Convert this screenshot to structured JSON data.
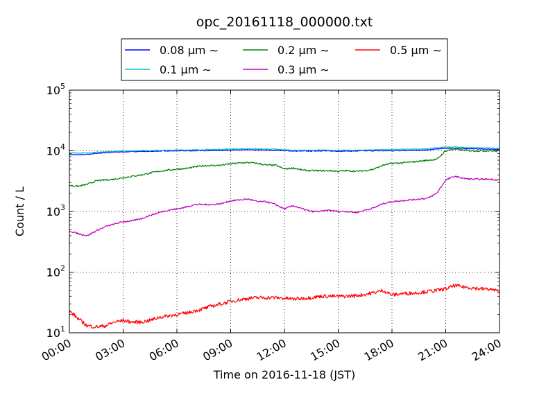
{
  "chart_data": {
    "type": "line",
    "title": "opc_20161118_000000.txt",
    "xlabel": "Time on 2016-11-18 (JST)",
    "ylabel": "Count / L",
    "x_unit": "hours",
    "xlim": [
      0,
      24
    ],
    "x_ticks": [
      0,
      3,
      6,
      9,
      12,
      15,
      18,
      21,
      24
    ],
    "x_tick_labels": [
      "00:00",
      "03:00",
      "06:00",
      "09:00",
      "12:00",
      "15:00",
      "18:00",
      "21:00",
      "24:00"
    ],
    "y_scale": "log",
    "ylim": [
      10,
      100000
    ],
    "y_ticks": [
      10,
      100,
      1000,
      10000,
      100000
    ],
    "y_tick_exponents": [
      "1",
      "2",
      "3",
      "4",
      "5"
    ],
    "y_tick_base": "10",
    "grid": true,
    "legend": {
      "placement": "top",
      "columns": 3
    },
    "series": [
      {
        "name": "0.08 μm ∼",
        "color": "#0000ff",
        "x": [
          0,
          0.5,
          1,
          1.5,
          2,
          2.5,
          3,
          3.5,
          4,
          4.5,
          5,
          5.5,
          6,
          6.5,
          7,
          7.5,
          8,
          8.5,
          9,
          9.5,
          10,
          10.5,
          11,
          11.5,
          12,
          12.5,
          13,
          13.5,
          14,
          14.5,
          15,
          15.5,
          16,
          16.5,
          17,
          17.5,
          18,
          18.5,
          19,
          19.5,
          20,
          20.5,
          21,
          21.5,
          22,
          22.5,
          23,
          23.5,
          24
        ],
        "values": [
          8700,
          8600,
          8700,
          9100,
          9300,
          9500,
          9600,
          9700,
          9800,
          9800,
          9900,
          9900,
          10000,
          10000,
          10000,
          10100,
          10100,
          10200,
          10300,
          10300,
          10400,
          10300,
          10300,
          10200,
          10100,
          9900,
          9900,
          9900,
          10000,
          9900,
          9900,
          9900,
          9900,
          10000,
          10000,
          10000,
          10000,
          10100,
          10100,
          10200,
          10300,
          10700,
          11000,
          11000,
          10900,
          10800,
          10700,
          10600,
          10500
        ]
      },
      {
        "name": "0.1 μm ∼",
        "color": "#00bfbf",
        "x": [
          0,
          0.5,
          1,
          1.5,
          2,
          2.5,
          3,
          3.5,
          4,
          4.5,
          5,
          5.5,
          6,
          6.5,
          7,
          7.5,
          8,
          8.5,
          9,
          9.5,
          10,
          10.5,
          11,
          11.5,
          12,
          12.5,
          13,
          13.5,
          14,
          14.5,
          15,
          15.5,
          16,
          16.5,
          17,
          17.5,
          18,
          18.5,
          19,
          19.5,
          20,
          20.5,
          21,
          21.5,
          22,
          22.5,
          23,
          23.5,
          24
        ],
        "values": [
          9300,
          9200,
          9200,
          9500,
          9600,
          9800,
          9900,
          10000,
          10100,
          10100,
          10200,
          10200,
          10300,
          10300,
          10400,
          10400,
          10500,
          10600,
          10700,
          10700,
          10800,
          10700,
          10700,
          10600,
          10400,
          10200,
          10200,
          10200,
          10300,
          10200,
          10200,
          10200,
          10200,
          10300,
          10400,
          10500,
          10500,
          10600,
          10600,
          10700,
          10800,
          11200,
          11500,
          11500,
          11400,
          11300,
          11200,
          11100,
          11000
        ]
      },
      {
        "name": "0.2 μm ∼",
        "color": "#008000",
        "x": [
          0,
          0.5,
          1,
          1.5,
          2,
          2.5,
          3,
          3.5,
          4,
          4.5,
          5,
          5.5,
          6,
          6.5,
          7,
          7.5,
          8,
          8.5,
          9,
          9.5,
          10,
          10.5,
          11,
          11.5,
          12,
          12.5,
          13,
          13.5,
          14,
          14.5,
          15,
          15.5,
          16,
          16.5,
          17,
          17.5,
          18,
          18.5,
          19,
          19.5,
          20,
          20.5,
          21,
          21.5,
          22,
          22.5,
          23,
          23.5,
          24
        ],
        "values": [
          2700,
          2600,
          2800,
          3200,
          3300,
          3400,
          3600,
          3800,
          4000,
          4300,
          4600,
          4800,
          5000,
          5100,
          5400,
          5700,
          5700,
          5800,
          6100,
          6300,
          6400,
          6200,
          5800,
          5800,
          5000,
          5200,
          4800,
          4700,
          4700,
          4700,
          4600,
          4700,
          4600,
          4700,
          5000,
          5800,
          6200,
          6300,
          6500,
          6700,
          7000,
          7200,
          10000,
          10700,
          10200,
          10000,
          10000,
          10000,
          9800
        ]
      },
      {
        "name": "0.3 μm ∼",
        "color": "#bf00bf",
        "x": [
          0,
          0.5,
          1,
          1.5,
          2,
          2.5,
          3,
          3.5,
          4,
          4.5,
          5,
          5.5,
          6,
          6.5,
          7,
          7.5,
          8,
          8.5,
          9,
          9.5,
          10,
          10.5,
          11,
          11.5,
          12,
          12.5,
          13,
          13.5,
          14,
          14.5,
          15,
          15.5,
          16,
          16.5,
          17,
          17.5,
          18,
          18.5,
          19,
          19.5,
          20,
          20.5,
          21,
          21.5,
          22,
          22.5,
          23,
          23.5,
          24
        ],
        "values": [
          480,
          430,
          400,
          480,
          560,
          620,
          680,
          700,
          760,
          860,
          960,
          1050,
          1100,
          1180,
          1300,
          1300,
          1300,
          1350,
          1500,
          1550,
          1600,
          1450,
          1450,
          1300,
          1100,
          1250,
          1100,
          1000,
          1000,
          1050,
          1000,
          1000,
          960,
          1050,
          1150,
          1350,
          1450,
          1500,
          1550,
          1600,
          1650,
          2000,
          3300,
          3800,
          3500,
          3400,
          3400,
          3400,
          3300
        ]
      },
      {
        "name": "0.5 μm ∼",
        "color": "#ff0000",
        "x": [
          0,
          0.5,
          1,
          1.5,
          2,
          2.5,
          3,
          3.5,
          4,
          4.5,
          5,
          5.5,
          6,
          6.5,
          7,
          7.5,
          8,
          8.5,
          9,
          9.5,
          10,
          10.5,
          11,
          11.5,
          12,
          12.5,
          13,
          13.5,
          14,
          14.5,
          15,
          15.5,
          16,
          16.5,
          17,
          17.5,
          18,
          18.5,
          19,
          19.5,
          20,
          20.5,
          21,
          21.5,
          22,
          22.5,
          23,
          23.5,
          24
        ],
        "values": [
          23,
          17,
          13,
          12.5,
          13,
          15,
          16,
          15,
          15,
          16,
          18,
          19,
          20,
          21,
          23,
          25,
          28,
          30,
          33,
          35,
          37,
          38,
          38,
          38,
          37,
          36,
          37,
          38,
          40,
          40,
          40,
          40,
          41,
          43,
          46,
          50,
          42,
          44,
          45,
          46,
          48,
          50,
          53,
          60,
          57,
          55,
          53,
          52,
          48
        ]
      }
    ]
  }
}
